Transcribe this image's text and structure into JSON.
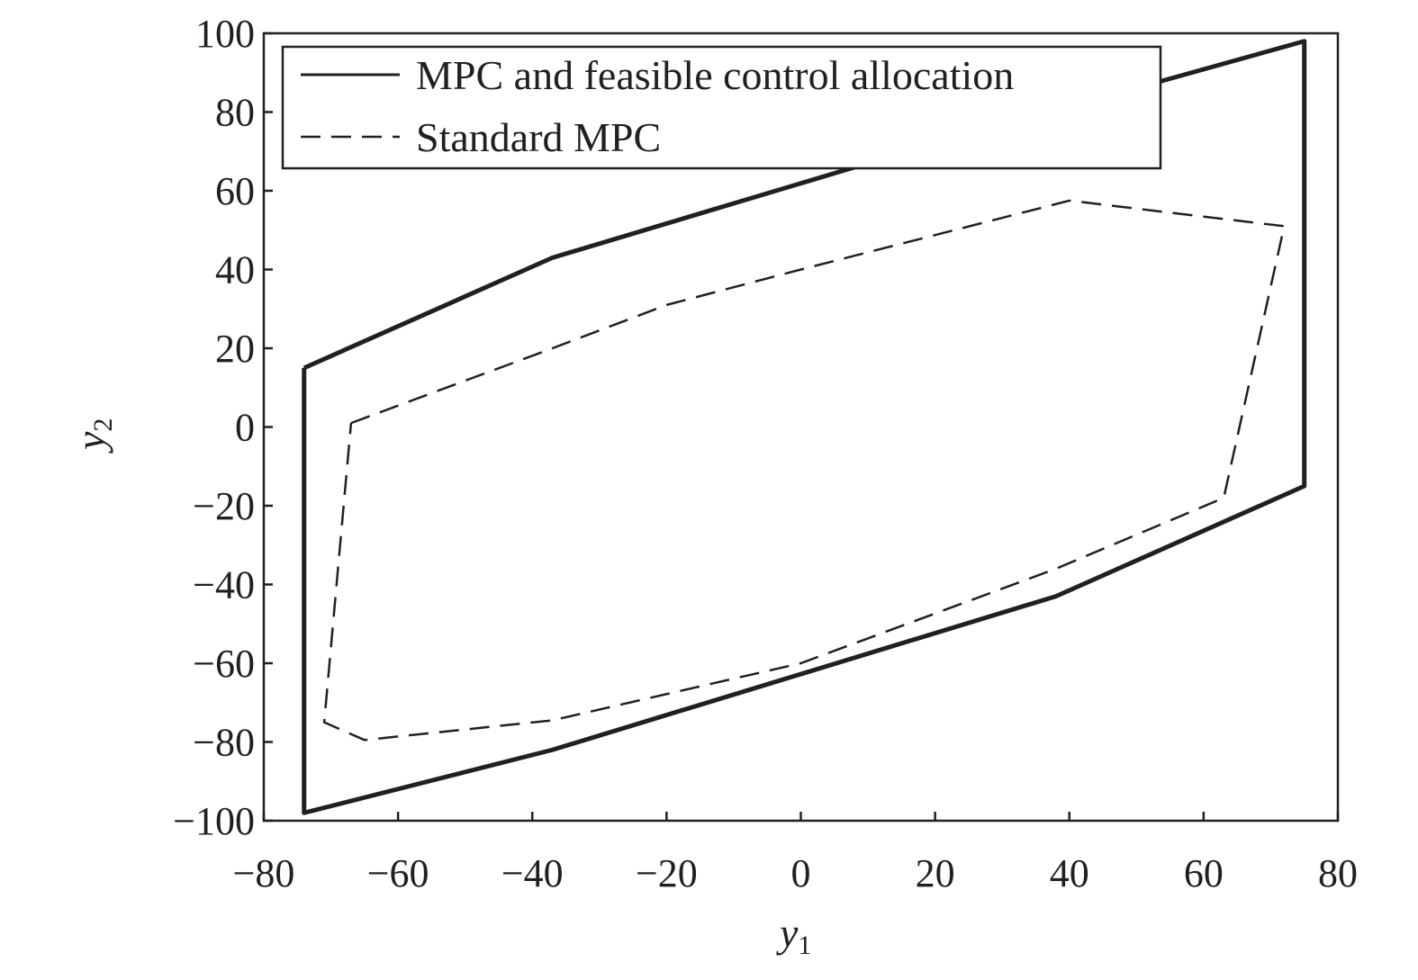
{
  "chart_data": {
    "type": "line",
    "xlabel": "y",
    "xlabel_sub": "1",
    "ylabel": "y",
    "ylabel_sub": "2",
    "xlim": [
      -80,
      80
    ],
    "ylim": [
      -100,
      100
    ],
    "xticks": [
      -80,
      -60,
      -40,
      -20,
      0,
      20,
      40,
      60,
      80
    ],
    "yticks": [
      100,
      80,
      60,
      40,
      20,
      0,
      -20,
      -40,
      -60,
      -80,
      -100
    ],
    "grid": false,
    "legend_position": "top",
    "series": [
      {
        "name": "MPC and feasible control allocation",
        "style": "solid",
        "color": "#231f20",
        "x": [
          -74,
          -37,
          10,
          54,
          75,
          75,
          38,
          -37,
          -74,
          -74
        ],
        "y": [
          15,
          43,
          67,
          88,
          98,
          -15,
          -43,
          -82,
          -98,
          15
        ]
      },
      {
        "name": "Standard MPC",
        "style": "dashed",
        "color": "#231f20",
        "x": [
          -67,
          -37,
          -20,
          0,
          40,
          72,
          63,
          38,
          0,
          -37,
          -65,
          -71,
          -67
        ],
        "y": [
          1,
          20,
          31,
          40,
          57.5,
          51,
          -18,
          -36,
          -60,
          -74.5,
          -79.5,
          -75,
          1
        ]
      }
    ]
  }
}
